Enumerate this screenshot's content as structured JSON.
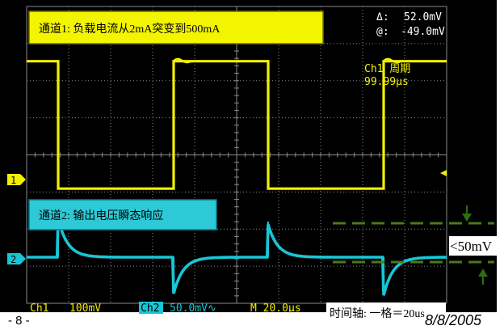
{
  "chart_data": {
    "type": "line",
    "title": "",
    "x_unit": "µs",
    "x_range": [
      -10,
      190
    ],
    "series": [
      {
        "name": "通道1: 负载电流从2mA突变到500mA",
        "scale": "100mV",
        "color": "#f2f000",
        "x": [
          -10,
          5,
          5,
          60,
          60,
          105,
          105,
          160,
          160,
          190
        ],
        "levels_div": [
          4.2,
          4.2,
          -0.2,
          -0.2,
          4.2,
          4.2,
          -0.2,
          -0.2,
          4.2,
          4.2
        ]
      },
      {
        "name": "通道2: 输出电压瞬态响应",
        "scale": "50.0mV",
        "color": "#17c6d6",
        "x": [
          -10,
          5,
          60,
          105,
          160,
          190
        ],
        "events": [
          "baseline",
          "overshoot",
          "undershoot",
          "overshoot",
          "undershoot",
          "baseline"
        ],
        "peak_mV": 52.0,
        "trough_mV": -49.0
      }
    ],
    "grid": true
  },
  "scope": {
    "marker_1": "1",
    "marker_2": "2",
    "cursor_delta_label": "Δ:",
    "cursor_delta_value": "52.0mV",
    "cursor_at_label": "@:",
    "cursor_at_value": "-49.0mV",
    "period_label": "Ch1 周期",
    "period_value": "99.99µs",
    "ch1_label": "Ch1",
    "ch1_scale": "100mV",
    "ch2_label": "Ch2",
    "ch2_scale": "50.0mV∿",
    "timebase": "M 20.0µs"
  },
  "annotations": {
    "ch1_box": "通道1: 负载电流从2mA突变到500mA",
    "ch2_box": "通道2: 输出电压瞬态响应",
    "ripple": "<50mV",
    "timeaxis": "时间轴: 一格＝20us"
  },
  "footer": {
    "page": "- 8 -",
    "date": "8/8/2005"
  },
  "colors": {
    "background": "#000000",
    "grid": "#8a8a8a",
    "ch1": "#f2f000",
    "ch2": "#17c6d6",
    "annotation_dash": "#4a7a1a",
    "arrow": "#2f6d10"
  }
}
